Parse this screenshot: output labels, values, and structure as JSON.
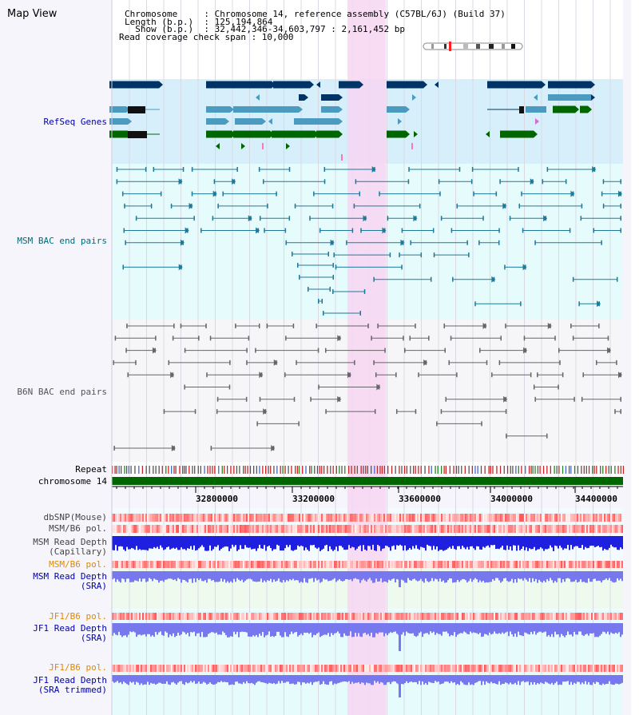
{
  "header": {
    "title": "Map View",
    "lines": [
      "Chromosome     : Chromosome 14, reference assembly (C57BL/6J) (Build 37)",
      "Length (b.p.)  : 125,194,864",
      "  Show (b.p.)  : 32,442,346-34,603,797 : 2,161,452 bp",
      "Read coverage check span : 10,000"
    ]
  },
  "colors": {
    "highlight": "#f7d6f2",
    "refseq_bg": "#d6effa",
    "msm_bg": "#e6fbfb",
    "navy": "#003366",
    "teal": "#4a9bbf",
    "green": "#006600",
    "msm_pair": "#1f7a9a",
    "b6n_pair": "#666666",
    "depth_blue": "#1f1fe0",
    "sra_blue": "#7777ee",
    "label_blue": "#0000aa",
    "label_orange": "#e08a00",
    "label_teal": "#006a7a"
  },
  "tracks": {
    "refseq": "RefSeq Genes",
    "msm_bac": "MSM BAC end pairs",
    "b6n_bac": "B6N BAC end pairs",
    "repeat": "Repeat",
    "chromosome": "chromosome 14",
    "dbsnp": "dbSNP(Mouse)",
    "msm_pol": "MSM/B6 pol.",
    "msm_depth_cap_1": "MSM Read Depth",
    "msm_depth_cap_2": "(Capillary)",
    "msm_pol_2": "MSM/B6 pol.",
    "msm_sra_1": "MSM Read Depth",
    "msm_sra_2": "(SRA)",
    "jf1_pol": "JF1/B6 pol.",
    "jf1_sra_1": "JF1 Read Depth",
    "jf1_sra_2": "(SRA)",
    "jf1_pol_2": "JF1/B6 pol.",
    "jf1_trim_1": "JF1 Read Depth",
    "jf1_trim_2": "(SRA trimmed)"
  },
  "axis": {
    "ticks": [
      "32800000",
      "33200000",
      "33600000",
      "34000000",
      "34400000"
    ]
  }
}
